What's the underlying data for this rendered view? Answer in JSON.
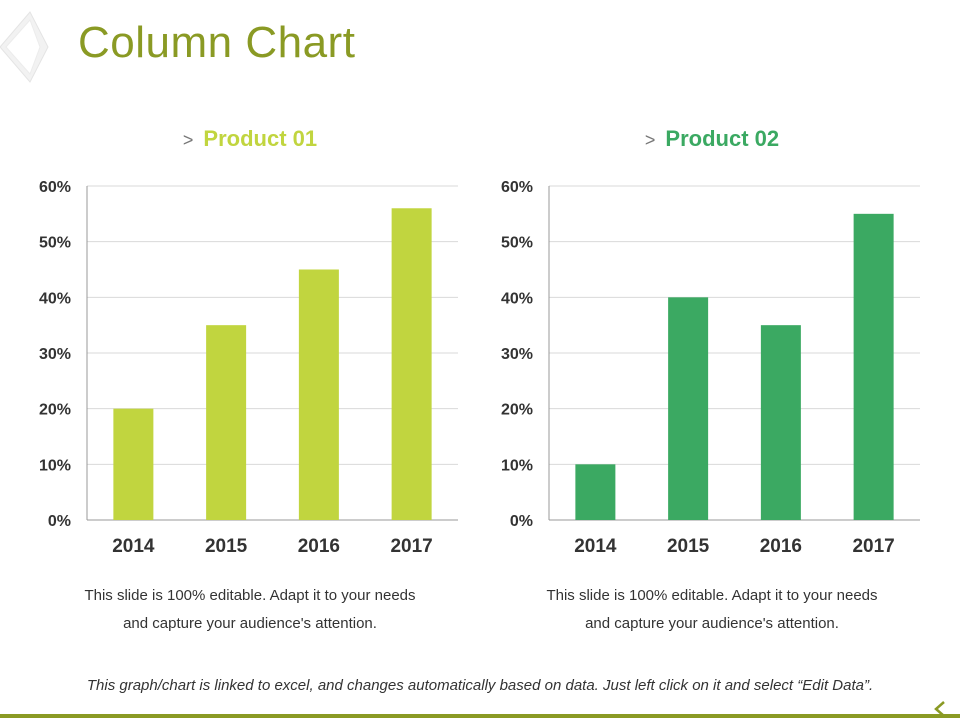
{
  "slide": {
    "title": "Column Chart",
    "footer": "This graph/chart is linked to excel, and changes automatically based on data. Just left click on it and select “Edit Data”.",
    "colors": {
      "title": "#8a9a24",
      "rule": "#8a9a24",
      "grid": "#d9d9d9",
      "axis": "#999999"
    }
  },
  "charts": [
    {
      "heading": "Product 01",
      "chevron": ">",
      "color": "#c1d53f",
      "caption": [
        "This slide is 100% editable. Adapt it to your needs",
        "and capture your audience's attention."
      ]
    },
    {
      "heading": "Product 02",
      "chevron": ">",
      "color": "#3ba962",
      "caption": [
        "This slide is 100% editable. Adapt it to your needs",
        "and capture your audience's attention."
      ]
    }
  ],
  "chart_data": [
    {
      "type": "bar",
      "title": "Product 01",
      "categories": [
        "2014",
        "2015",
        "2016",
        "2017"
      ],
      "values": [
        20,
        35,
        45,
        56
      ],
      "ylim": [
        0,
        60
      ],
      "yticks": [
        0,
        10,
        20,
        30,
        40,
        50,
        60
      ],
      "ytick_labels": [
        "0%",
        "10%",
        "20%",
        "30%",
        "40%",
        "50%",
        "60%"
      ],
      "grid": true,
      "legend": "none"
    },
    {
      "type": "bar",
      "title": "Product 02",
      "categories": [
        "2014",
        "2015",
        "2016",
        "2017"
      ],
      "values": [
        10,
        40,
        35,
        55
      ],
      "ylim": [
        0,
        60
      ],
      "yticks": [
        0,
        10,
        20,
        30,
        40,
        50,
        60
      ],
      "ytick_labels": [
        "0%",
        "10%",
        "20%",
        "30%",
        "40%",
        "50%",
        "60%"
      ],
      "grid": true,
      "legend": "none"
    }
  ]
}
